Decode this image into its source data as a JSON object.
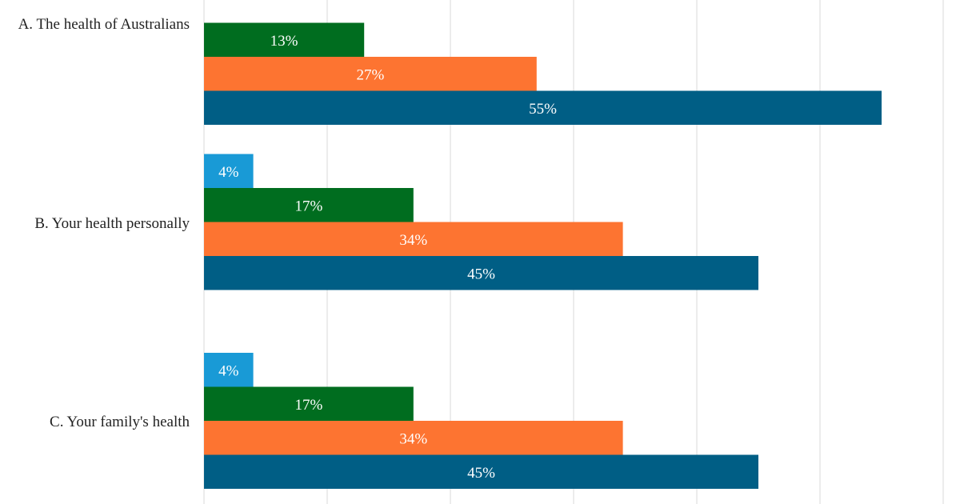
{
  "chart_data": {
    "type": "bar",
    "orientation": "horizontal",
    "categories": [
      "A. The health of Australians",
      "B. Your health personally",
      "C. Your family's health"
    ],
    "series": [
      {
        "color": "#199ad6",
        "values": [
          null,
          4,
          4
        ],
        "labels": [
          "",
          "4%",
          "4%"
        ]
      },
      {
        "color": "#006d1f",
        "values": [
          13,
          17,
          17
        ],
        "labels": [
          "13%",
          "17%",
          "17%"
        ]
      },
      {
        "color": "#fd7431",
        "values": [
          27,
          34,
          34
        ],
        "labels": [
          "27%",
          "34%",
          "34%"
        ]
      },
      {
        "color": "#005e85",
        "values": [
          55,
          45,
          45
        ],
        "labels": [
          "55%",
          "45%",
          "45%"
        ]
      }
    ],
    "xlim": [
      0,
      60
    ],
    "grid": true,
    "title": "",
    "xlabel": "",
    "ylabel": ""
  }
}
